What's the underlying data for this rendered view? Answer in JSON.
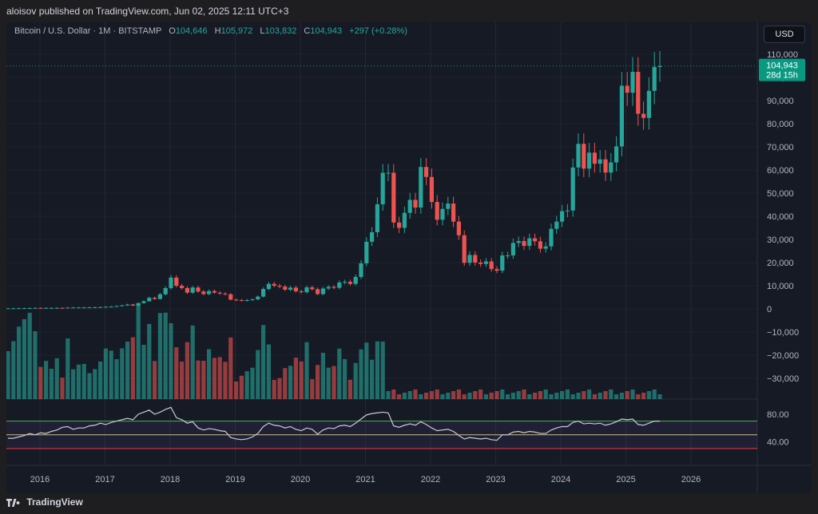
{
  "header": {
    "published": "aloisov published on TradingView.com, Jun 02, 2025 12:11 UTC+3"
  },
  "legend": {
    "symbol": "Bitcoin / U.S. Dollar · 1M · BITSTAMP",
    "o_label": "O",
    "o_value": "104,646",
    "h_label": "H",
    "h_value": "105,972",
    "l_label": "L",
    "l_value": "103,832",
    "c_label": "C",
    "c_value": "104,943",
    "change": "+297 (+0.28%)"
  },
  "currency_button": "USD",
  "price_badge": {
    "price": "104,943",
    "countdown": "28d 15h"
  },
  "footer": {
    "brand": "TradingView",
    "logo_icon": "tradingview-logo-icon"
  },
  "colors": {
    "up": "#26a69a",
    "down": "#ef5350",
    "rsi": "#c9cbd1",
    "accent": "#089981"
  },
  "chart_data": [
    {
      "type": "candlestick",
      "title": "Bitcoin / U.S. Dollar · 1M · BITSTAMP",
      "x_axis_labels": [
        "2016",
        "2017",
        "2018",
        "2019",
        "2020",
        "2021",
        "2022",
        "2023",
        "2024",
        "2025",
        "2026"
      ],
      "y_tick_labels": [
        "110,000",
        "100,000",
        "90,000",
        "80,000",
        "70,000",
        "60,000",
        "50,000",
        "40,000",
        "30,000",
        "20,000",
        "10,000",
        "0",
        "−10,000",
        "−20,000",
        "−30,000"
      ],
      "ylim": [
        -38000,
        113000
      ],
      "current_price": 104943,
      "monthly_closes": [
        230,
        240,
        270,
        310,
        360,
        420,
        380,
        420,
        420,
        440,
        420,
        560,
        580,
        600,
        600,
        650,
        700,
        770,
        900,
        1000,
        1200,
        1500,
        1900,
        1400,
        2500,
        3300,
        4800,
        4300,
        6300,
        9000,
        13500,
        10000,
        9000,
        7000,
        9250,
        7500,
        6400,
        7700,
        7000,
        6600,
        6300,
        4000,
        3800,
        3500,
        3800,
        4100,
        5300,
        8600,
        10800,
        10000,
        9600,
        8300,
        9200,
        7600,
        7200,
        9300,
        8500,
        6400,
        8800,
        9500,
        9100,
        11400,
        11700,
        10800,
        13800,
        19700,
        29000,
        33100,
        45200,
        58800,
        58800,
        37300,
        35000,
        41500,
        47100,
        43800,
        61300,
        57000,
        46200,
        38500,
        43200,
        45500,
        37700,
        31800,
        19900,
        23300,
        20000,
        19400,
        20500,
        17200,
        16500,
        23100,
        23100,
        28500,
        29300,
        27200,
        30500,
        29200,
        26000,
        27000,
        34600,
        37700,
        42200,
        42500,
        61100,
        71300,
        60600,
        67500,
        62700,
        64600,
        58900,
        63300,
        70200,
        96400,
        93400,
        102400,
        84300,
        82500,
        94200,
        104500,
        104943
      ],
      "volume_bars": "up/down colored monthly volume bars (bottom of main pane)"
    },
    {
      "type": "line",
      "title": "RSI",
      "y_tick_labels": [
        "80.00",
        "40.00"
      ],
      "ylim": [
        20,
        100
      ],
      "levels": [
        70,
        50,
        30
      ],
      "values": [
        45,
        45,
        47,
        49,
        52,
        50,
        53,
        52,
        55,
        57,
        61,
        62,
        58,
        60,
        60,
        63,
        64,
        67,
        65,
        68,
        70,
        72,
        74,
        72,
        80,
        83,
        86,
        80,
        83,
        87,
        90,
        75,
        72,
        67,
        69,
        60,
        57,
        59,
        58,
        56,
        55,
        46,
        44,
        43,
        44,
        47,
        52,
        62,
        67,
        64,
        63,
        60,
        62,
        58,
        56,
        60,
        58,
        51,
        57,
        60,
        59,
        63,
        64,
        62,
        67,
        73,
        79,
        81,
        82,
        83,
        82,
        63,
        61,
        64,
        66,
        64,
        69,
        65,
        60,
        56,
        57,
        58,
        55,
        49,
        44,
        46,
        45,
        44,
        45,
        43,
        42,
        50,
        50,
        54,
        55,
        53,
        55,
        54,
        52,
        52,
        57,
        60,
        62,
        62,
        68,
        70,
        66,
        67,
        66,
        67,
        64,
        66,
        69,
        73,
        72,
        73,
        65,
        64,
        67,
        70,
        70
      ]
    }
  ]
}
